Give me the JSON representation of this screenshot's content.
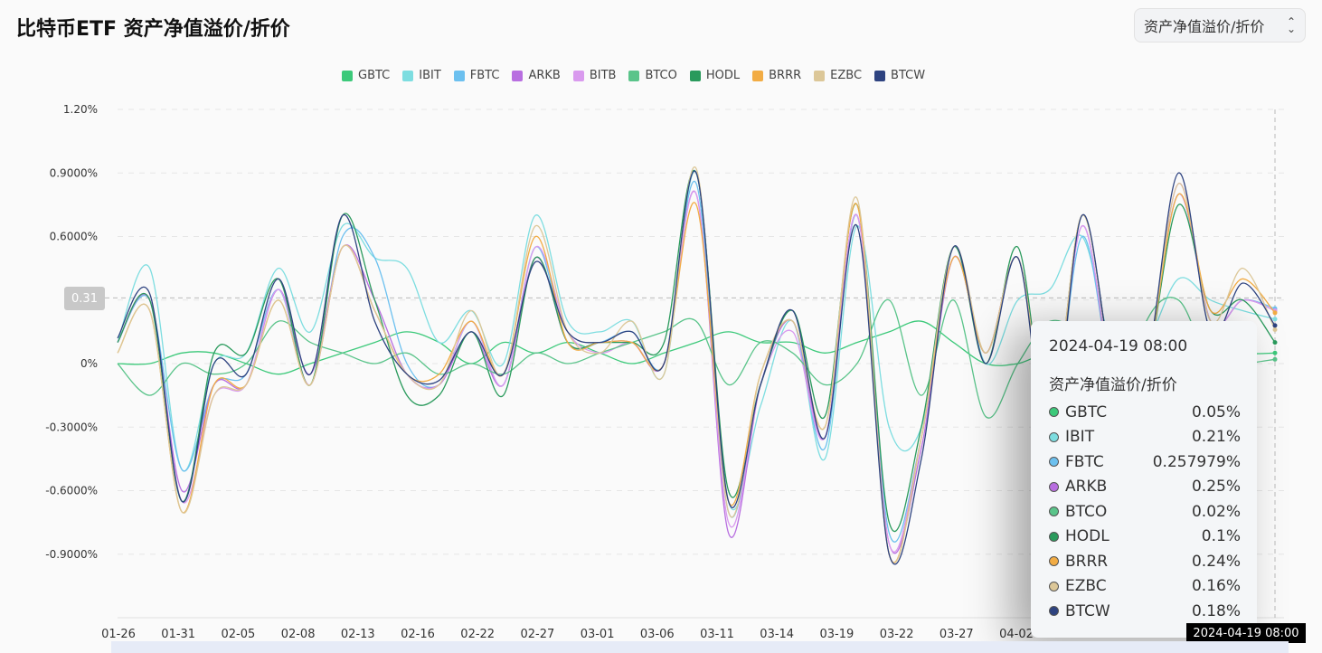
{
  "header": {
    "title": "比特币ETF 资产净值溢价/折价",
    "select_value": "资产净值溢价/折价"
  },
  "colors": {
    "GBTC": "#3cc97a",
    "IBIT": "#7ddde0",
    "FBTC": "#6cc0ef",
    "ARKB": "#b86ee0",
    "BITB": "#d99aee",
    "BTCO": "#5ac48a",
    "HODL": "#2a9a5c",
    "BRRR": "#f2ac44",
    "EZBC": "#dcc798",
    "BTCW": "#2e4380"
  },
  "chart_data": {
    "type": "line",
    "title": "比特币ETF 资产净值溢价/折价",
    "xlabel": "",
    "ylabel": "",
    "ylim": [
      -1.2,
      1.2
    ],
    "y_ticks": [
      "1.20%",
      "0.9000%",
      "0.6000%",
      "0.3",
      "0%",
      "-0.3000%",
      "-0.6000%",
      "-0.9000%"
    ],
    "y_tick_values": [
      1.2,
      0.9,
      0.6,
      0.3,
      0,
      -0.3,
      -0.6,
      -0.9
    ],
    "x_tick_labels": [
      "01-26",
      "01-31",
      "02-05",
      "02-08",
      "02-13",
      "02-16",
      "02-22",
      "02-27",
      "03-01",
      "03-06",
      "03-11",
      "03-14",
      "03-19",
      "03-22",
      "03-27",
      "04-02"
    ],
    "grid": true,
    "legend_position": "top",
    "crosshair_y_label": "0.31",
    "crosshair_x_label": "2024-04-19 08:00",
    "series": [
      {
        "name": "GBTC",
        "values": [
          0.0,
          0.0,
          0.05,
          0.05,
          0.0,
          -0.05,
          0.0,
          0.05,
          0.1,
          0.15,
          0.1,
          0.0,
          0.1,
          0.05,
          0.1,
          0.05,
          0.0,
          0.05,
          0.1,
          0.15,
          0.1,
          0.1,
          0.05,
          0.1,
          0.15,
          0.2,
          0.1,
          0.0,
          0.0,
          0.05,
          0.0,
          0.0,
          0.0,
          0.05,
          0.1,
          0.05,
          0.05
        ]
      },
      {
        "name": "IBIT",
        "values": [
          0.1,
          0.45,
          -0.5,
          0.0,
          0.05,
          0.45,
          0.15,
          0.65,
          0.5,
          0.45,
          0.1,
          0.25,
          0.0,
          0.7,
          0.2,
          0.15,
          0.2,
          -0.05,
          0.9,
          -0.65,
          -0.2,
          0.2,
          -0.45,
          0.65,
          -0.3,
          -0.3,
          0.55,
          0.0,
          0.3,
          0.35,
          0.6,
          0.05,
          0.1,
          0.4,
          0.3,
          0.25,
          0.21
        ]
      },
      {
        "name": "FBTC",
        "values": [
          0.1,
          0.3,
          -0.5,
          -0.1,
          -0.05,
          0.35,
          -0.1,
          0.6,
          0.5,
          0.0,
          -0.1,
          0.2,
          -0.1,
          0.55,
          0.1,
          0.1,
          0.15,
          0.0,
          0.85,
          -0.7,
          -0.1,
          0.2,
          -0.4,
          0.7,
          -0.8,
          -0.35,
          0.5,
          0.05,
          0.5,
          -0.3,
          0.6,
          -0.1,
          0.0,
          0.8,
          0.2,
          0.3,
          0.26
        ]
      },
      {
        "name": "ARKB",
        "values": [
          0.1,
          0.3,
          -0.6,
          -0.1,
          -0.1,
          0.35,
          -0.05,
          0.55,
          0.3,
          -0.05,
          -0.1,
          0.15,
          -0.1,
          0.5,
          0.1,
          0.1,
          0.1,
          0.0,
          0.8,
          -0.8,
          -0.1,
          0.2,
          -0.35,
          0.7,
          -0.85,
          -0.4,
          0.5,
          0.05,
          0.5,
          -0.3,
          0.65,
          -0.1,
          0.0,
          0.85,
          0.2,
          0.3,
          0.25
        ]
      },
      {
        "name": "BITB",
        "values": [
          0.1,
          0.3,
          -0.65,
          -0.15,
          -0.1,
          0.35,
          -0.1,
          0.55,
          0.25,
          -0.05,
          -0.1,
          0.2,
          -0.1,
          0.55,
          0.15,
          0.05,
          0.1,
          0.0,
          0.8,
          -0.75,
          -0.1,
          0.15,
          -0.35,
          0.7,
          -0.85,
          -0.35,
          0.5,
          0.05,
          0.5,
          -0.3,
          0.65,
          -0.1,
          0.0,
          0.8,
          0.2,
          0.3,
          0.25
        ]
      },
      {
        "name": "BTCO",
        "values": [
          0.0,
          -0.15,
          0.0,
          -0.05,
          0.0,
          0.2,
          0.1,
          0.05,
          0.0,
          0.05,
          -0.05,
          0.0,
          -0.05,
          0.05,
          0.0,
          0.05,
          0.1,
          0.15,
          0.2,
          -0.1,
          0.1,
          0.05,
          -0.1,
          0.0,
          0.3,
          -0.15,
          0.3,
          -0.25,
          0.0,
          0.2,
          0.1,
          -0.3,
          0.2,
          0.3,
          0.0,
          0.0,
          0.02
        ]
      },
      {
        "name": "HODL",
        "values": [
          0.1,
          0.3,
          -0.65,
          0.05,
          0.05,
          0.4,
          -0.1,
          0.7,
          0.3,
          -0.15,
          -0.15,
          0.15,
          -0.15,
          0.5,
          0.1,
          0.1,
          0.1,
          0.1,
          0.9,
          -0.6,
          -0.1,
          0.25,
          -0.25,
          0.75,
          -0.75,
          -0.3,
          0.55,
          0.0,
          0.55,
          -0.3,
          0.7,
          -0.05,
          0.0,
          0.75,
          0.25,
          0.3,
          0.1
        ]
      },
      {
        "name": "BRRR",
        "values": [
          0.05,
          0.25,
          -0.7,
          -0.1,
          -0.1,
          0.3,
          -0.1,
          0.55,
          0.25,
          -0.05,
          -0.05,
          0.2,
          -0.05,
          0.6,
          0.1,
          0.1,
          0.1,
          0.0,
          0.75,
          -0.65,
          -0.05,
          0.2,
          -0.3,
          0.75,
          -0.9,
          -0.35,
          0.5,
          0.05,
          0.5,
          -0.3,
          0.7,
          -0.05,
          0.0,
          0.8,
          0.25,
          0.4,
          0.24
        ]
      },
      {
        "name": "EZBC",
        "values": [
          0.05,
          0.25,
          -0.7,
          -0.15,
          -0.1,
          0.3,
          -0.1,
          0.55,
          0.25,
          -0.05,
          -0.1,
          0.25,
          -0.05,
          0.65,
          0.15,
          0.05,
          0.2,
          -0.05,
          0.92,
          -0.7,
          -0.05,
          0.2,
          -0.3,
          0.78,
          -0.9,
          -0.35,
          0.55,
          0.05,
          0.5,
          -0.3,
          0.7,
          -0.05,
          0.0,
          0.85,
          0.2,
          0.45,
          0.16
        ]
      },
      {
        "name": "BTCW",
        "values": [
          0.12,
          0.33,
          -0.65,
          0.0,
          -0.05,
          0.4,
          -0.05,
          0.7,
          0.2,
          -0.05,
          -0.08,
          0.15,
          -0.05,
          0.48,
          0.15,
          0.1,
          0.15,
          0.0,
          0.9,
          -0.65,
          -0.1,
          0.25,
          -0.35,
          0.65,
          -0.9,
          -0.45,
          0.55,
          0.0,
          0.5,
          -0.4,
          0.7,
          -0.05,
          0.0,
          0.9,
          0.15,
          0.38,
          0.18
        ]
      }
    ]
  },
  "tooltip": {
    "time": "2024-04-19 08:00",
    "heading": "资产净值溢价/折价",
    "rows": [
      {
        "name": "GBTC",
        "value": "0.05%",
        "color": "#3cc97a"
      },
      {
        "name": "IBIT",
        "value": "0.21%",
        "color": "#7ddde0"
      },
      {
        "name": "FBTC",
        "value": "0.257979%",
        "color": "#6cc0ef"
      },
      {
        "name": "ARKB",
        "value": "0.25%",
        "color": "#b86ee0"
      },
      {
        "name": "BTCO",
        "value": "0.02%",
        "color": "#5ac48a"
      },
      {
        "name": "HODL",
        "value": "0.1%",
        "color": "#2a9a5c"
      },
      {
        "name": "BRRR",
        "value": "0.24%",
        "color": "#f2ac44"
      },
      {
        "name": "EZBC",
        "value": "0.16%",
        "color": "#dcc798"
      },
      {
        "name": "BTCW",
        "value": "0.18%",
        "color": "#2e4380"
      }
    ]
  }
}
